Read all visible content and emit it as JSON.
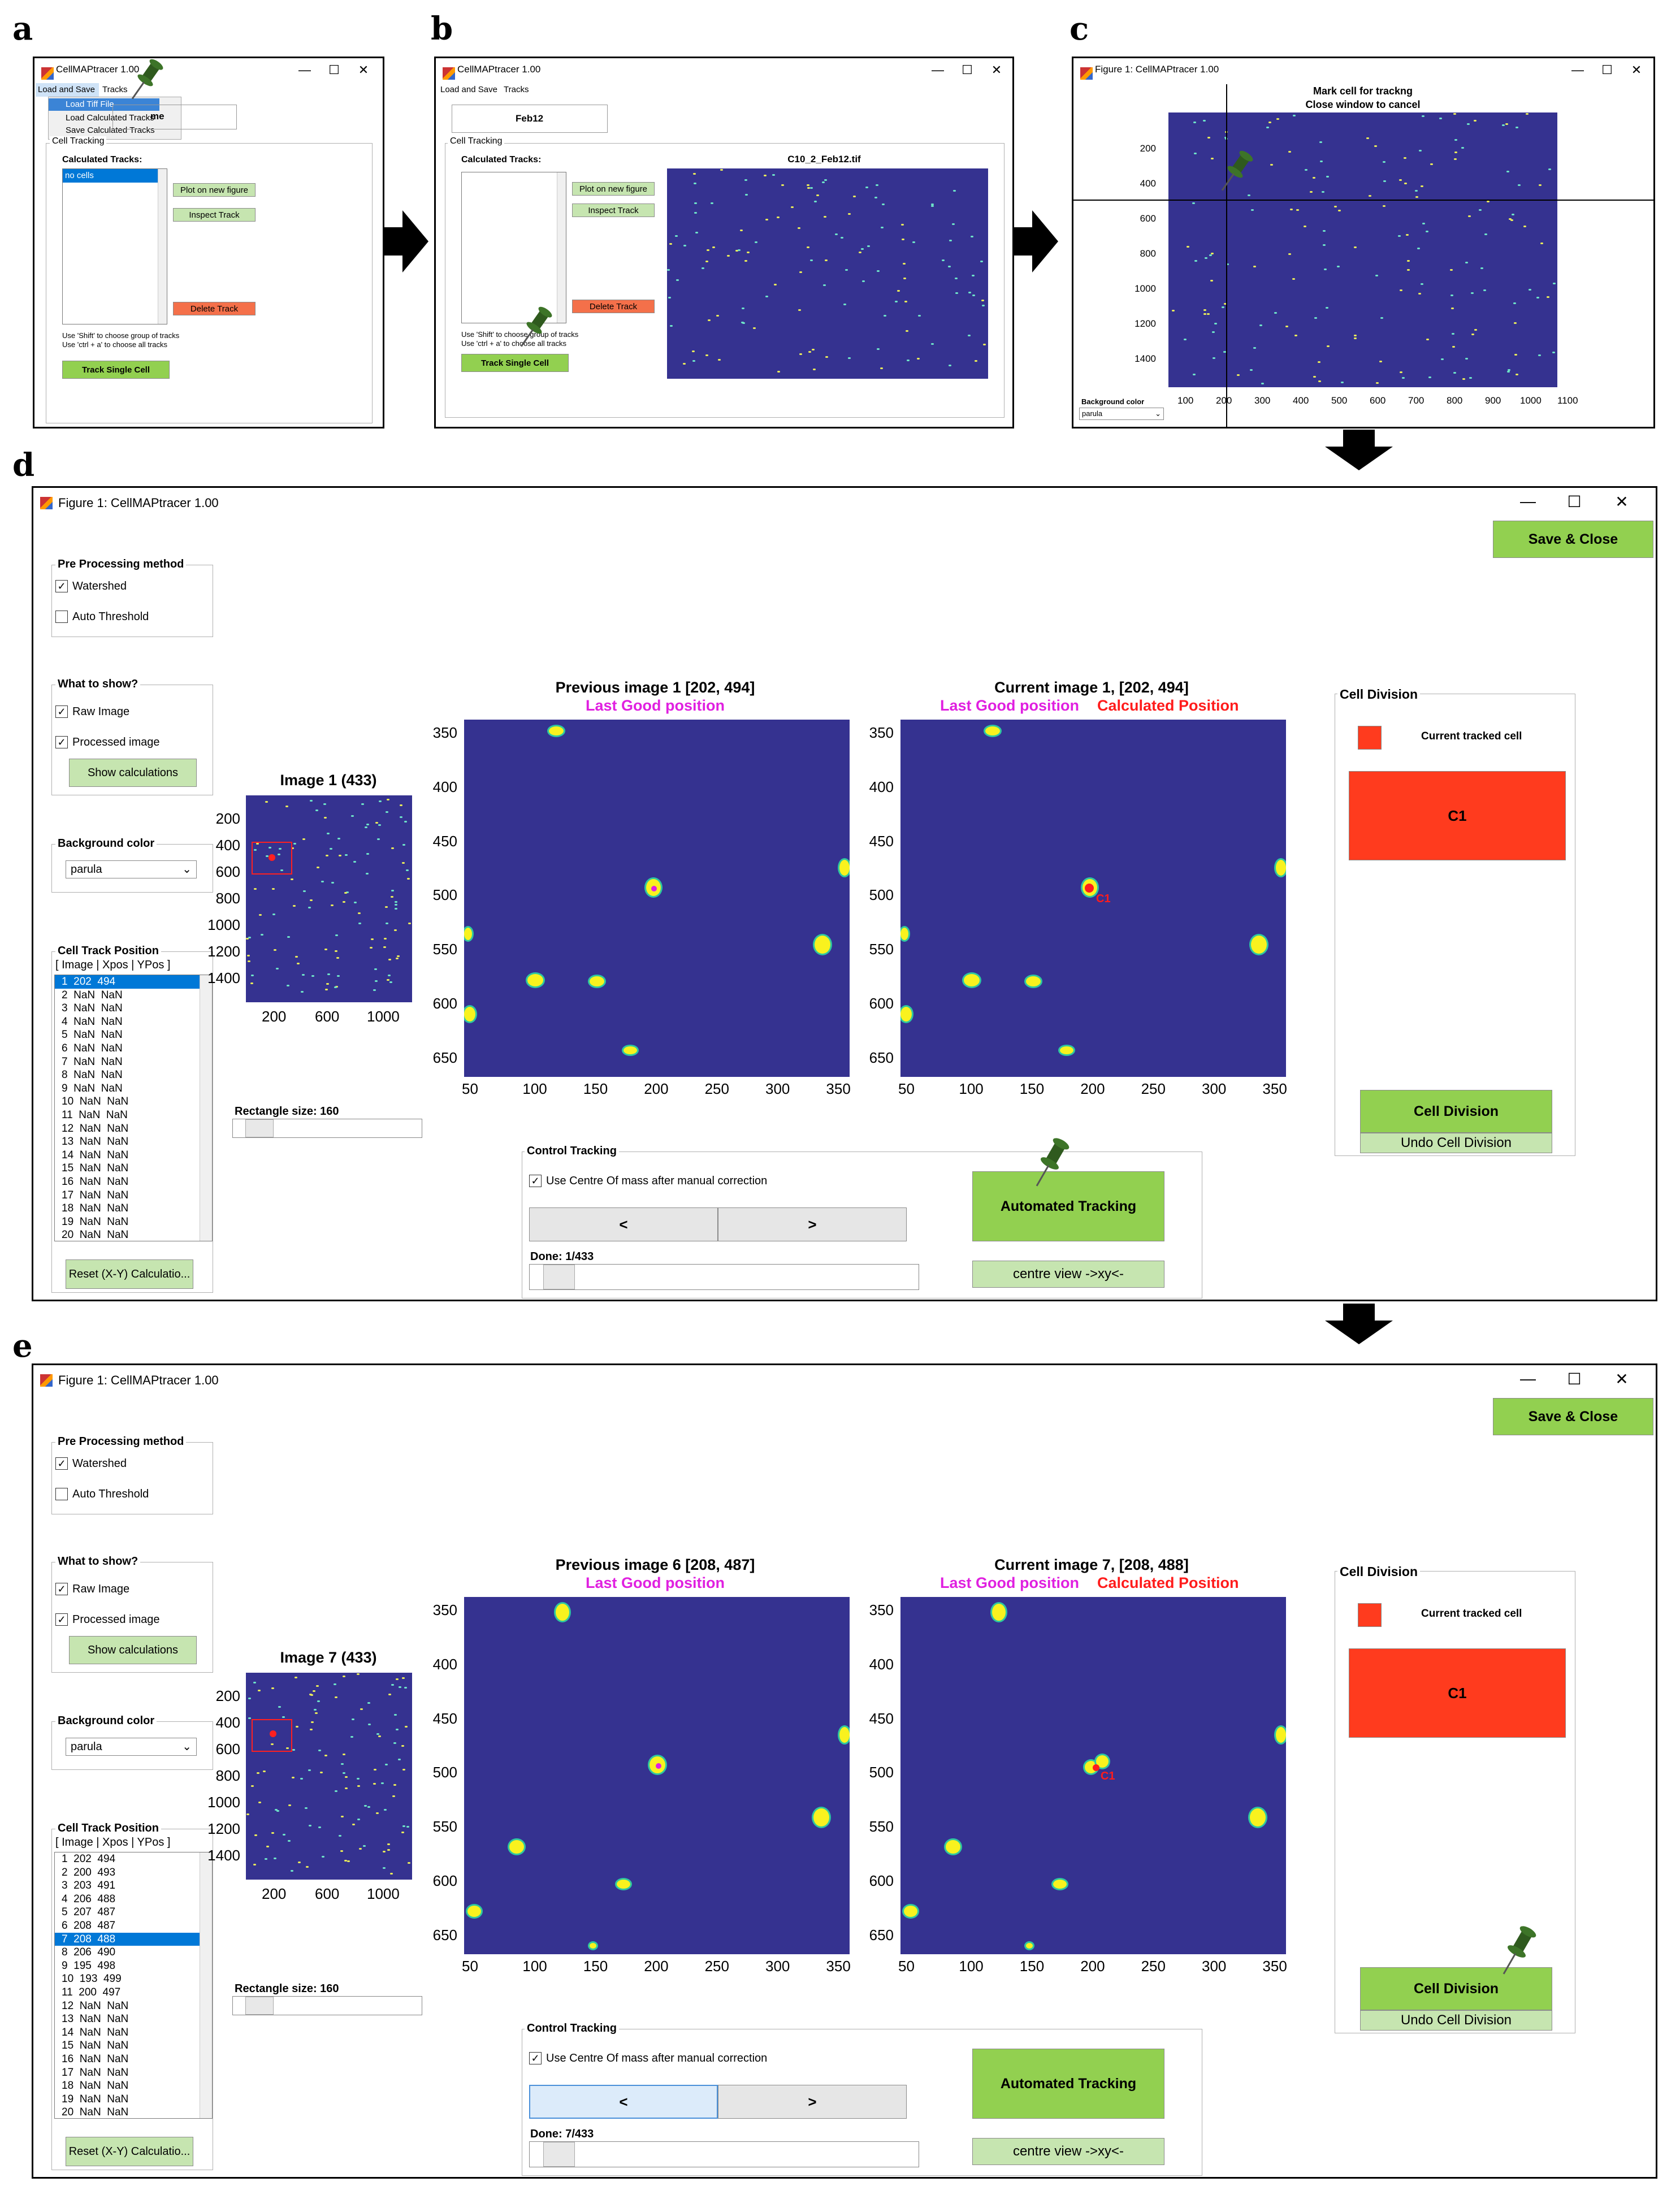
{
  "panel_labels": {
    "a": "a",
    "b": "b",
    "c": "c",
    "d": "d",
    "e": "e"
  },
  "colors": {
    "accent_green": "#92d050",
    "light_green": "#c6e5b0",
    "delete_red": "#f4704a",
    "plot_bg": "#353290",
    "cell_yellow": "#f9f21e",
    "division_red": "#ff3b1e",
    "selection_blue": "#0078d7",
    "magenta": "#e020e0",
    "red_text": "#ff1c1c"
  },
  "icons": {
    "pin": "pushpin-icon",
    "arrow": "right-arrow-icon",
    "down": "down-arrow-icon"
  },
  "a": {
    "title": "CellMAPtracer 1.00",
    "menu": [
      "Load and Save",
      "Tracks"
    ],
    "dropdown": [
      "Load Tiff File",
      "Load Calculated Tracks",
      "Save Calculated Tracks"
    ],
    "name_field": "me",
    "group_title": "Cell Tracking",
    "calc_label": "Calculated Tracks:",
    "list": [
      "no cells"
    ],
    "plot_btn": "Plot on new figure",
    "inspect_btn": "Inspect Track",
    "delete_btn": "Delete Track",
    "hint1": "Use 'Shift' to choose group of tracks",
    "hint2": "Use 'ctrl + a' to choose all tracks",
    "track_btn": "Track Single Cell"
  },
  "b": {
    "title": "CellMAPtracer 1.00",
    "menu": [
      "Load and Save",
      "Tracks"
    ],
    "name_field": "Feb12",
    "group_title": "Cell Tracking",
    "calc_label": "Calculated Tracks:",
    "plot_btn": "Plot on new figure",
    "inspect_btn": "Inspect Track",
    "delete_btn": "Delete Track",
    "hint1": "Use 'Shift' to choose group of tracks",
    "hint2": "Use 'ctrl + a' to choose all tracks",
    "track_btn": "Track Single Cell",
    "image_title": "C10_2_Feb12.tif"
  },
  "c": {
    "title": "Figure 1: CellMAPtracer 1.00",
    "plot_title1": "Mark cell for trackng",
    "plot_title2": "Close window to cancel",
    "yticks": [
      "200",
      "400",
      "600",
      "800",
      "1000",
      "1200",
      "1400"
    ],
    "xticks": [
      "100",
      "200",
      "300",
      "400",
      "500",
      "600",
      "700",
      "800",
      "900",
      "1000",
      "1100"
    ],
    "bg_label": "Background color",
    "bg_value": "parula"
  },
  "d": {
    "title": "Figure 1: CellMAPtracer 1.00",
    "save_btn": "Save & Close",
    "preproc_title": "Pre Processing method",
    "watershed": "Watershed",
    "auto_threshold": "Auto Threshold",
    "show_title": "What to show?",
    "raw_image": "Raw Image",
    "processed_image": "Processed image",
    "show_calc_btn": "Show calculations",
    "bg_title": "Background color",
    "bg_value": "parula",
    "track_title": "Cell Track Position",
    "track_header": "[ Image | Xpos | YPos ]",
    "track_rows": [
      "1  202  494",
      "2  NaN  NaN",
      "3  NaN  NaN",
      "4  NaN  NaN",
      "5  NaN  NaN",
      "6  NaN  NaN",
      "7  NaN  NaN",
      "8  NaN  NaN",
      "9  NaN  NaN",
      "10  NaN  NaN",
      "11  NaN  NaN",
      "12  NaN  NaN",
      "13  NaN  NaN",
      "14  NaN  NaN",
      "15  NaN  NaN",
      "16  NaN  NaN",
      "17  NaN  NaN",
      "18  NaN  NaN",
      "19  NaN  NaN",
      "20  NaN  NaN"
    ],
    "reset_btn": "Reset (X-Y) Calculatio...",
    "overview_title": "Image 1 (433)",
    "overview_yticks": [
      "200",
      "400",
      "600",
      "800",
      "1000",
      "1200",
      "1400"
    ],
    "overview_xticks": [
      "200",
      "600",
      "1000"
    ],
    "rect_label": "Rectangle size: 160",
    "prev_title": "Previous image 1 [202, 494]",
    "prev_sub": "Last Good position",
    "curr_title": "Current image 1, [202, 494]",
    "curr_sub1": "Last Good position",
    "curr_sub2": "Calculated Position",
    "yticks": [
      "350",
      "400",
      "450",
      "500",
      "550",
      "600",
      "650"
    ],
    "xticks": [
      "50",
      "100",
      "150",
      "200",
      "250",
      "300",
      "350"
    ],
    "cell_label": "C1",
    "division_title": "Cell Division",
    "current_tracked": "Current tracked cell",
    "c1_box": "C1",
    "division_btn": "Cell Division",
    "undo_btn": "Undo Cell Division",
    "control_title": "Control Tracking",
    "centre_mass": "Use Centre Of mass after manual correction",
    "prev_btn": "<",
    "next_btn": ">",
    "done": "Done: 1/433",
    "auto_btn": "Automated Tracking",
    "centre_btn": "centre view ->xy<-"
  },
  "e": {
    "title": "Figure 1: CellMAPtracer 1.00",
    "save_btn": "Save & Close",
    "preproc_title": "Pre Processing method",
    "watershed": "Watershed",
    "auto_threshold": "Auto Threshold",
    "show_title": "What to show?",
    "raw_image": "Raw Image",
    "processed_image": "Processed image",
    "show_calc_btn": "Show calculations",
    "bg_title": "Background color",
    "bg_value": "parula",
    "track_title": "Cell Track Position",
    "track_header": "[ Image | Xpos | YPos ]",
    "track_rows": [
      "1  202  494",
      "2  200  493",
      "3  203  491",
      "4  206  488",
      "5  207  487",
      "6  208  487",
      "7  208  488",
      "8  206  490",
      "9  195  498",
      "10  193  499",
      "11  200  497",
      "12  NaN  NaN",
      "13  NaN  NaN",
      "14  NaN  NaN",
      "15  NaN  NaN",
      "16  NaN  NaN",
      "17  NaN  NaN",
      "18  NaN  NaN",
      "19  NaN  NaN",
      "20  NaN  NaN"
    ],
    "reset_btn": "Reset (X-Y) Calculatio...",
    "overview_title": "Image 7 (433)",
    "overview_yticks": [
      "200",
      "400",
      "600",
      "800",
      "1000",
      "1200",
      "1400"
    ],
    "overview_xticks": [
      "200",
      "600",
      "1000"
    ],
    "rect_label": "Rectangle size: 160",
    "prev_title": "Previous image 6 [208, 487]",
    "prev_sub": "Last Good position",
    "curr_title": "Current image 7, [208, 488]",
    "curr_sub1": "Last Good position",
    "curr_sub2": "Calculated Position",
    "yticks": [
      "350",
      "400",
      "450",
      "500",
      "550",
      "600",
      "650"
    ],
    "xticks": [
      "50",
      "100",
      "150",
      "200",
      "250",
      "300",
      "350"
    ],
    "cell_label": "C1",
    "division_title": "Cell Division",
    "current_tracked": "Current tracked cell",
    "c1_box": "C1",
    "division_btn": "Cell Division",
    "undo_btn": "Undo Cell Division",
    "control_title": "Control Tracking",
    "centre_mass": "Use Centre Of mass after manual correction",
    "prev_btn": "<",
    "next_btn": ">",
    "done": "Done: 7/433",
    "auto_btn": "Automated Tracking",
    "centre_btn": "centre view ->xy<-"
  }
}
